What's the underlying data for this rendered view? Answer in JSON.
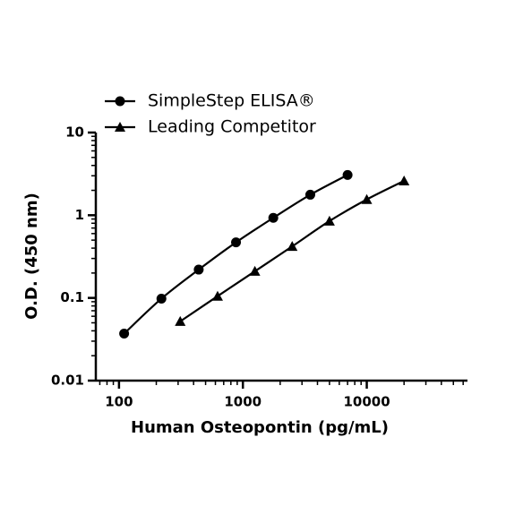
{
  "chart_data": {
    "type": "line",
    "x_label": "Human Osteopontin (pg/mL)",
    "y_label": "O.D. (450 nm)",
    "xscale": "log",
    "yscale": "log",
    "xlim": [
      65,
      65000
    ],
    "ylim": [
      0.01,
      10
    ],
    "xticks": [
      100,
      1000,
      10000
    ],
    "yticks": [
      0.01,
      0.1,
      1,
      10
    ],
    "legend": "top-left",
    "series": [
      {
        "name": "SimpleStep ELISA®",
        "color": "#000000",
        "marker": "circle",
        "x": [
          110,
          220,
          440,
          880,
          1760,
          3500,
          7000
        ],
        "values": [
          0.037,
          0.098,
          0.22,
          0.47,
          0.93,
          1.77,
          3.07
        ]
      },
      {
        "name": "Leading Competitor",
        "color": "#000000",
        "marker": "triangle",
        "x": [
          312,
          625,
          1250,
          2500,
          5000,
          10000,
          20000
        ],
        "values": [
          0.052,
          0.105,
          0.21,
          0.42,
          0.85,
          1.55,
          2.6
        ]
      }
    ]
  }
}
